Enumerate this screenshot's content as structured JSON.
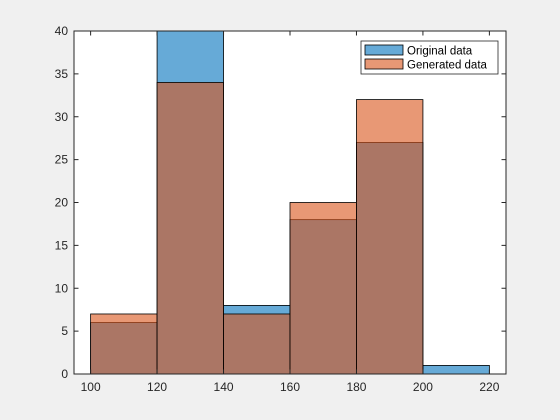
{
  "chart_data": {
    "type": "histogram",
    "bin_edges": [
      100,
      120,
      140,
      160,
      180,
      200,
      220
    ],
    "series": [
      {
        "name": "Original data",
        "values": [
          6,
          40,
          8,
          18,
          27,
          1
        ],
        "color": "#0072bd"
      },
      {
        "name": "Generated data",
        "values": [
          7,
          34,
          7,
          20,
          32,
          0
        ],
        "color": "#d95319"
      }
    ],
    "bar_opacity": 0.6,
    "xlim": [
      95,
      225
    ],
    "ylim": [
      0,
      40
    ],
    "xticks": [
      100,
      120,
      140,
      160,
      180,
      200,
      220
    ],
    "yticks": [
      0,
      5,
      10,
      15,
      20,
      25,
      30,
      35,
      40
    ],
    "legend": {
      "position": "top-right"
    },
    "grid": false,
    "title": "",
    "xlabel": "",
    "ylabel": ""
  }
}
